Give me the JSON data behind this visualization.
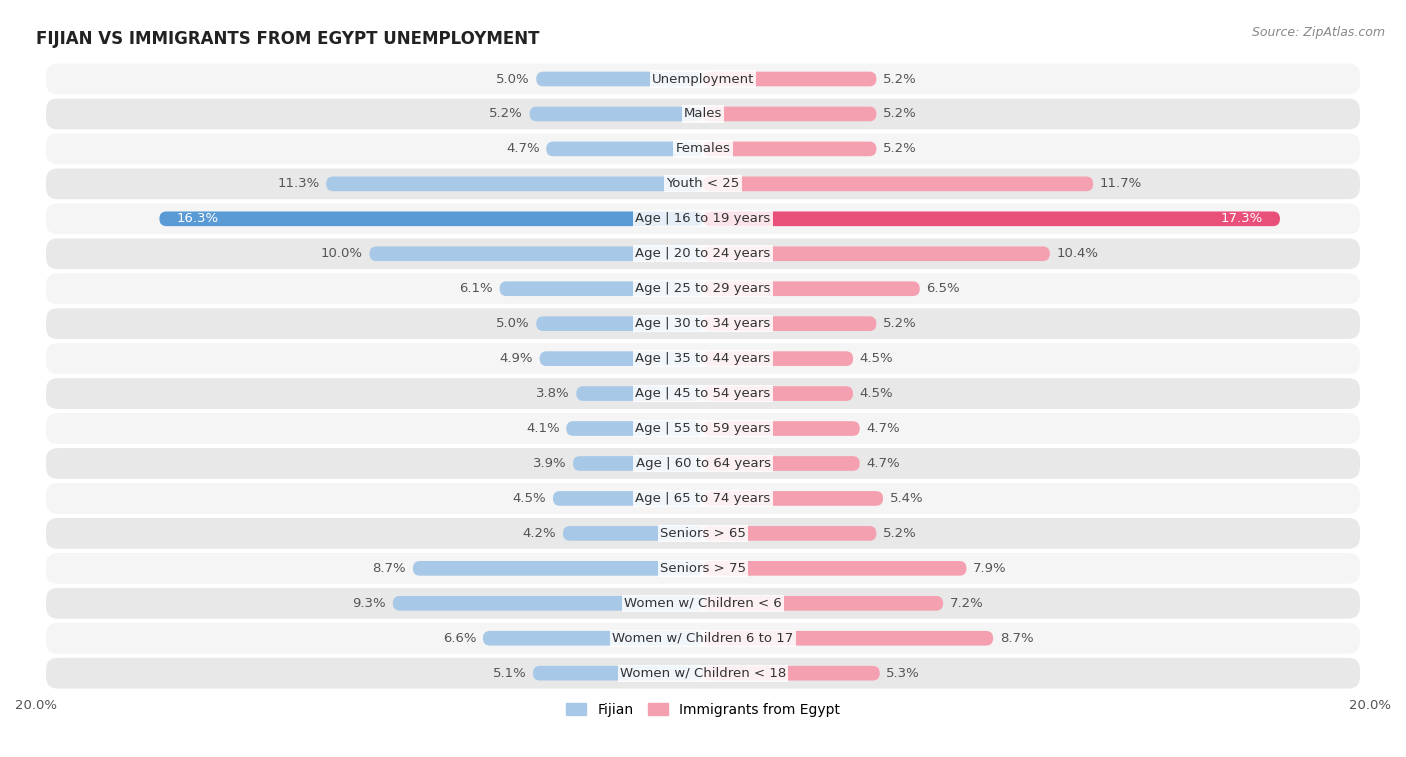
{
  "title": "FIJIAN VS IMMIGRANTS FROM EGYPT UNEMPLOYMENT",
  "source": "Source: ZipAtlas.com",
  "categories": [
    "Unemployment",
    "Males",
    "Females",
    "Youth < 25",
    "Age | 16 to 19 years",
    "Age | 20 to 24 years",
    "Age | 25 to 29 years",
    "Age | 30 to 34 years",
    "Age | 35 to 44 years",
    "Age | 45 to 54 years",
    "Age | 55 to 59 years",
    "Age | 60 to 64 years",
    "Age | 65 to 74 years",
    "Seniors > 65",
    "Seniors > 75",
    "Women w/ Children < 6",
    "Women w/ Children 6 to 17",
    "Women w/ Children < 18"
  ],
  "fijian": [
    5.0,
    5.2,
    4.7,
    11.3,
    16.3,
    10.0,
    6.1,
    5.0,
    4.9,
    3.8,
    4.1,
    3.9,
    4.5,
    4.2,
    8.7,
    9.3,
    6.6,
    5.1
  ],
  "egypt": [
    5.2,
    5.2,
    5.2,
    11.7,
    17.3,
    10.4,
    6.5,
    5.2,
    4.5,
    4.5,
    4.7,
    4.7,
    5.4,
    5.2,
    7.9,
    7.2,
    8.7,
    5.3
  ],
  "fijian_color": "#a8c8e8",
  "egypt_color": "#f4a0b0",
  "fijian_highlight_color": "#5b9bd5",
  "egypt_highlight_color": "#e8507a",
  "highlight_row": 4,
  "xlim": 20.0,
  "bar_height": 0.42,
  "row_bg_light": "#f5f5f5",
  "row_bg_dark": "#e8e8e8",
  "label_fontsize": 9.5,
  "title_fontsize": 12,
  "source_fontsize": 9,
  "value_fontsize": 9.5
}
